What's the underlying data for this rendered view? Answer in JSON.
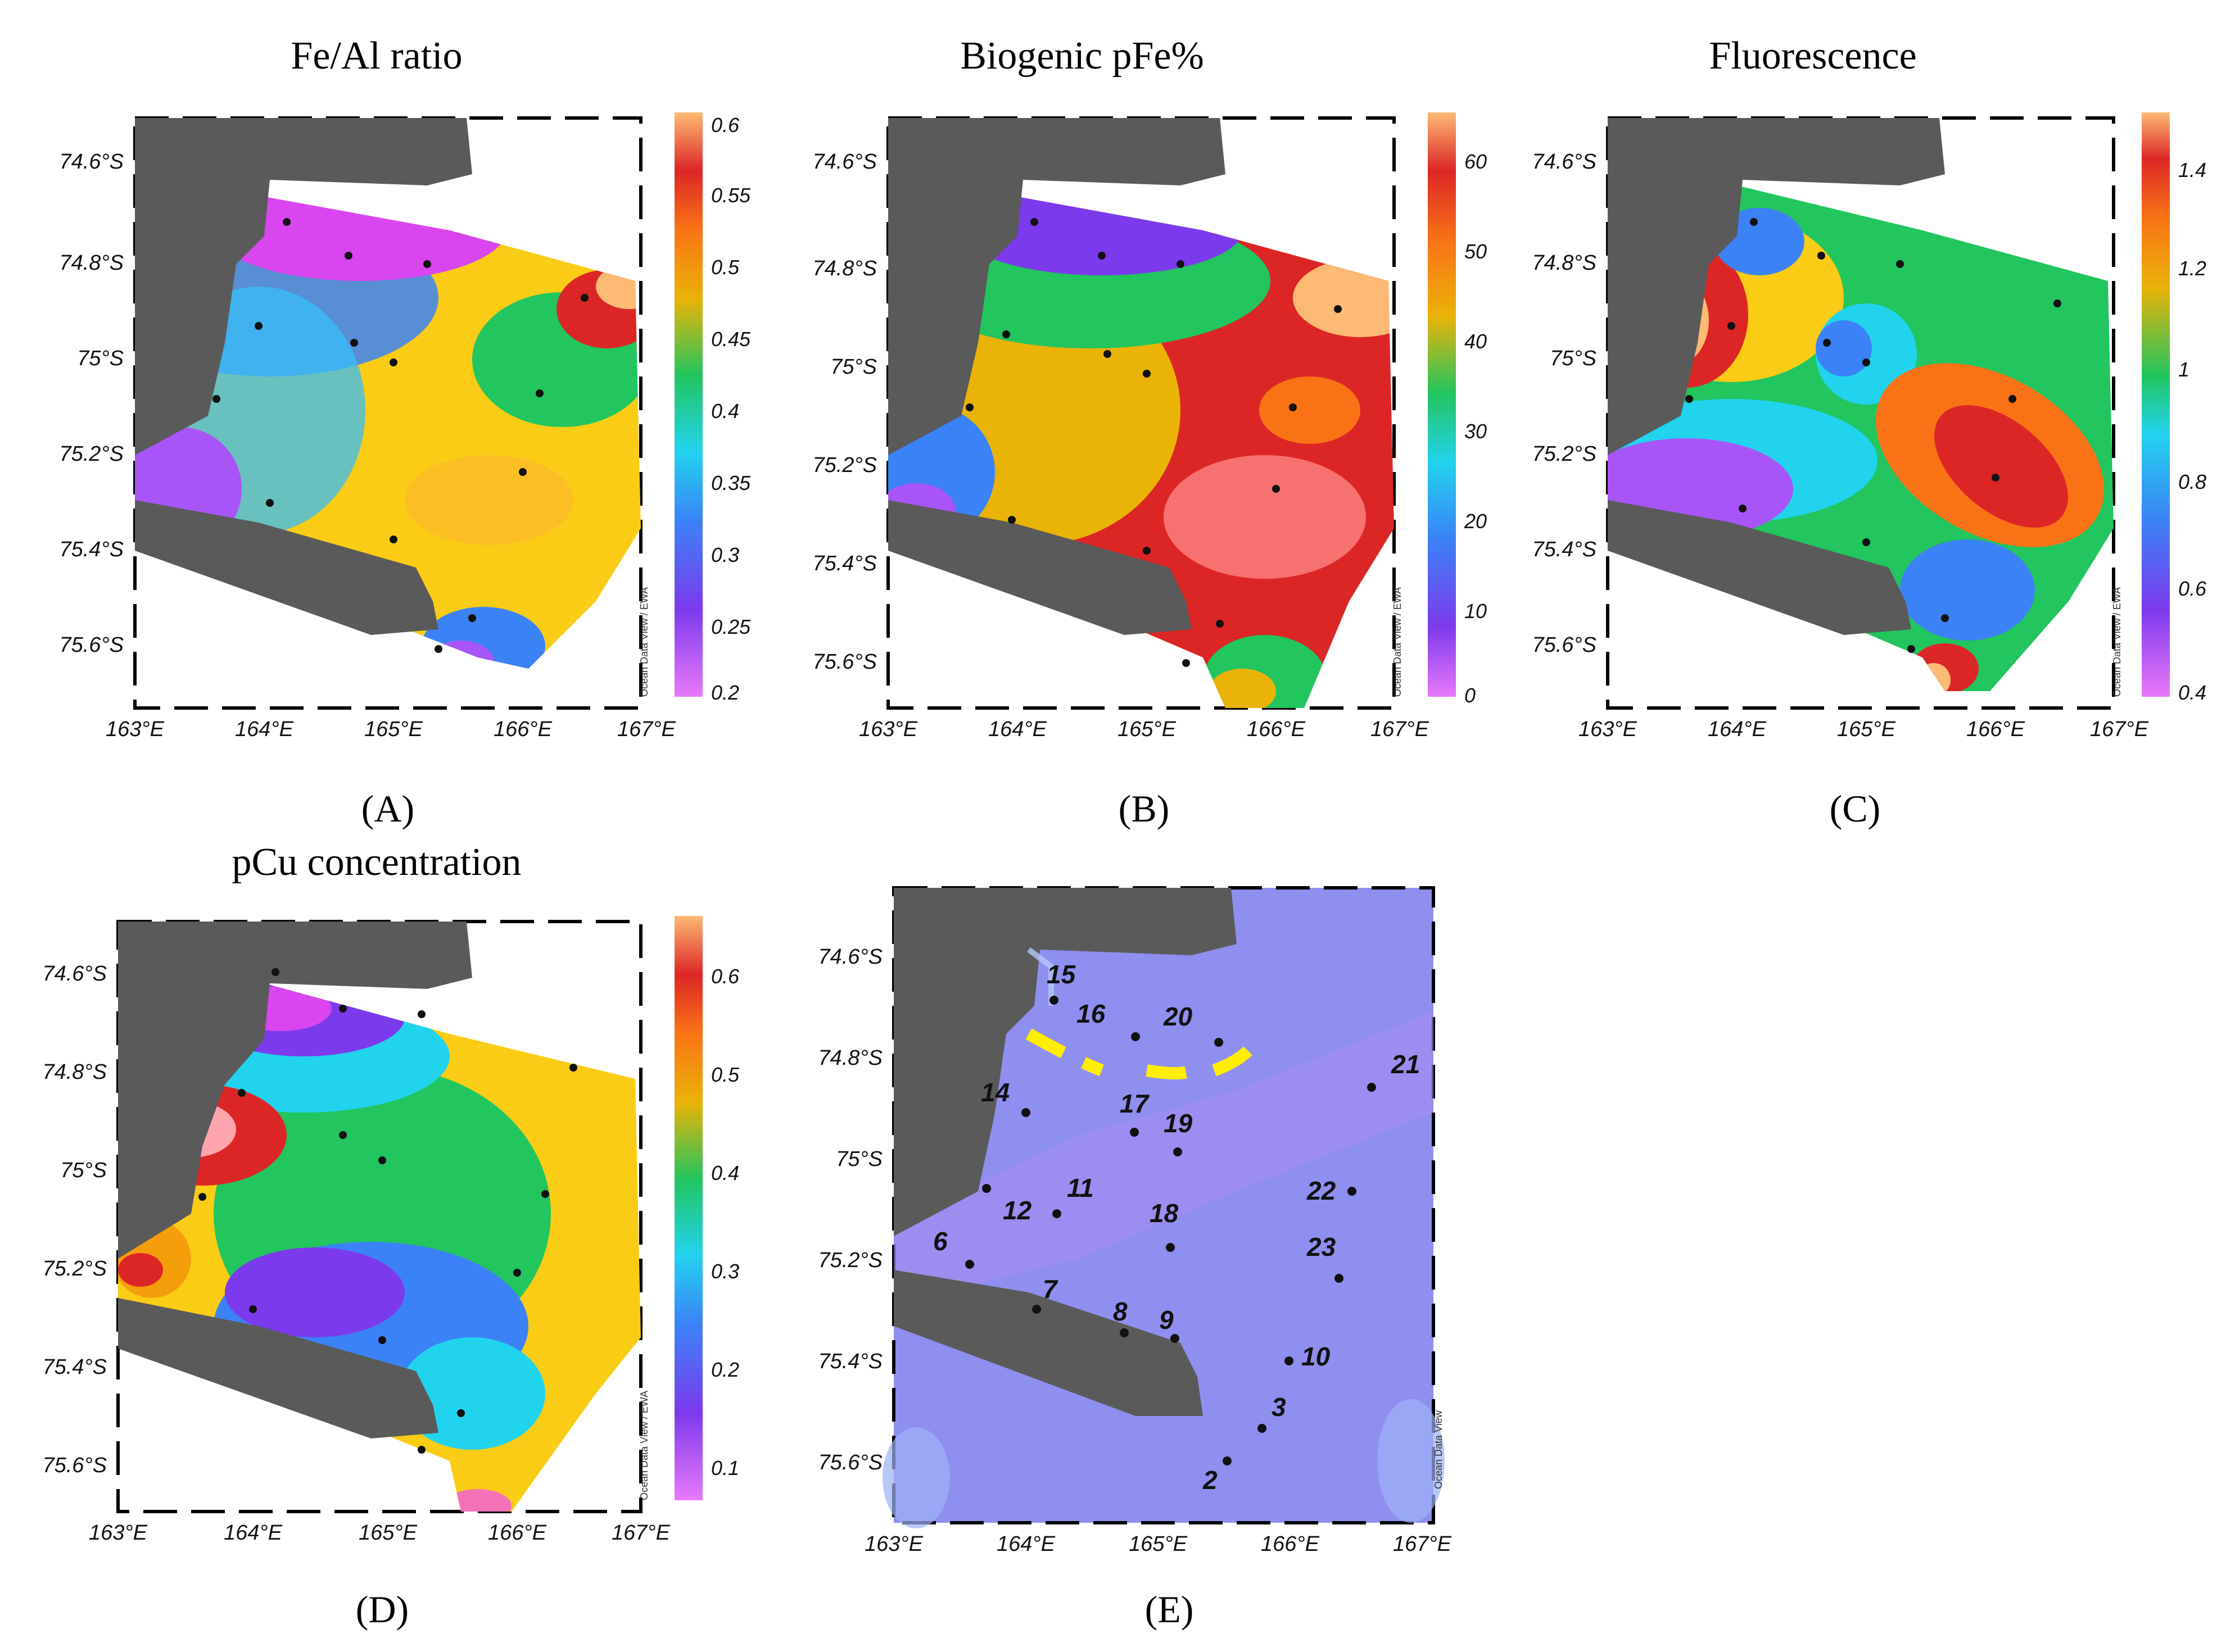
{
  "panels": {
    "A": {
      "title": "Fe/Al ratio",
      "label": "(A)",
      "colorbar_ticks": [
        "0.6",
        "0.55",
        "0.5",
        "0.45",
        "0.4",
        "0.35",
        "0.3",
        "0.25",
        "0.2"
      ]
    },
    "B": {
      "title": "Biogenic pFe%",
      "label": "(B)",
      "colorbar_ticks": [
        "60",
        "50",
        "40",
        "30",
        "20",
        "10",
        "0"
      ]
    },
    "C": {
      "title": "Fluorescence",
      "label": "(C)",
      "colorbar_ticks": [
        "1.4",
        "1.2",
        "1",
        "0.8",
        "0.6",
        "0.4"
      ]
    },
    "D": {
      "title": "pCu concentration",
      "label": "(D)",
      "colorbar_ticks": [
        "0.6",
        "0.5",
        "0.4",
        "0.3",
        "0.2",
        "0.1"
      ]
    },
    "E": {
      "title": "",
      "label": "(E)"
    }
  },
  "axes": {
    "lat_labels": [
      "74.6°S",
      "74.8°S",
      "75°S",
      "75.2°S",
      "75.4°S",
      "75.6°S"
    ],
    "lon_labels": [
      "163°E",
      "164°E",
      "165°E",
      "166°E",
      "167°E"
    ]
  },
  "watermarks": {
    "odv_ewa": "Ocean Data View / EWA",
    "odv": "Ocean Data View"
  },
  "stations": [
    "15",
    "16",
    "20",
    "21",
    "14",
    "17",
    "19",
    "11",
    "12",
    "22",
    "18",
    "23",
    "6",
    "7",
    "8",
    "9",
    "10",
    "3",
    "2"
  ],
  "colors": {
    "land": "#5a5a5a",
    "station_map_water": "#8f8ff0",
    "dashed_line": "#ffee00"
  }
}
